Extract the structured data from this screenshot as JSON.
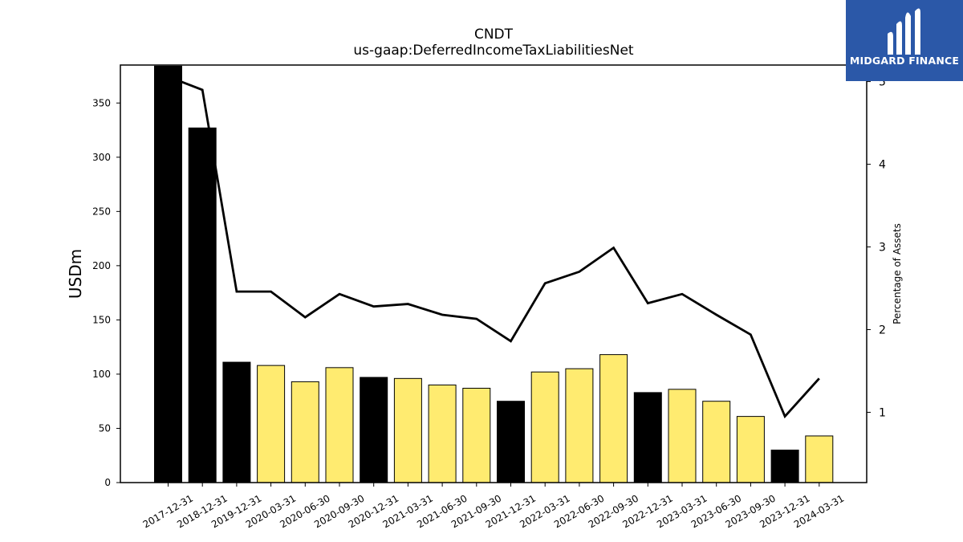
{
  "chart_data": {
    "type": "bar",
    "title": "CNDT",
    "subtitle": "us-gaap:DeferredIncomeTaxLiabilitiesNet",
    "ylabel": "USDm",
    "y2label": "Percentage of Assets",
    "ylim": [
      0,
      385
    ],
    "y2lim": [
      0.15,
      5.2
    ],
    "yticks": [
      0,
      50,
      100,
      150,
      200,
      250,
      300,
      350
    ],
    "y2ticks": [
      1,
      2,
      3,
      4,
      5
    ],
    "categories": [
      "2017-12-31",
      "2018-12-31",
      "2019-12-31",
      "2020-03-31",
      "2020-06-30",
      "2020-09-30",
      "2020-12-31",
      "2021-03-31",
      "2021-06-30",
      "2021-09-30",
      "2021-12-31",
      "2022-03-31",
      "2022-06-30",
      "2022-09-30",
      "2022-12-31",
      "2023-03-31",
      "2023-06-30",
      "2023-09-30",
      "2023-12-31",
      "2024-03-31"
    ],
    "series": [
      {
        "name": "",
        "kind": "bar",
        "values": [
          384,
          327,
          111,
          108,
          93,
          106,
          97,
          96,
          90,
          87,
          75,
          102,
          105,
          118,
          83,
          86,
          75,
          61,
          30,
          43
        ],
        "colors": [
          "#000000",
          "#000000",
          "#000000",
          "#ffeb70",
          "#ffeb70",
          "#ffeb70",
          "#000000",
          "#ffeb70",
          "#ffeb70",
          "#ffeb70",
          "#000000",
          "#ffeb70",
          "#ffeb70",
          "#ffeb70",
          "#000000",
          "#ffeb70",
          "#ffeb70",
          "#ffeb70",
          "#000000",
          "#ffeb70"
        ]
      },
      {
        "name": "",
        "kind": "line",
        "axis": "right",
        "values": [
          5.06,
          4.9,
          2.46,
          2.46,
          2.15,
          2.43,
          2.28,
          2.31,
          2.18,
          2.13,
          1.86,
          2.56,
          2.7,
          2.99,
          2.32,
          2.43,
          2.18,
          1.94,
          0.95,
          1.41
        ]
      }
    ],
    "grid": false
  },
  "logo": {
    "text": "MIDGARD FINANCE",
    "color": "#2b58a8"
  }
}
